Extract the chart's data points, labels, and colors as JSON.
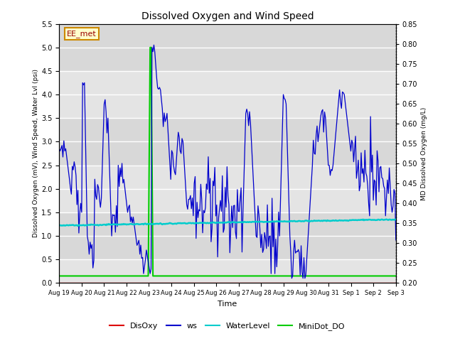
{
  "title": "Dissolved Oxygen and Wind Speed",
  "xlabel": "Time",
  "ylabel_left": "Dissolved Oxygen (mV), Wind Speed, Water Lvl (psi)",
  "ylabel_right": "MD Dissolved Oxygen (mg/L)",
  "ylim_left": [
    0.0,
    5.5
  ],
  "ylim_right": [
    0.2,
    0.85
  ],
  "yticks_left": [
    0.0,
    0.5,
    1.0,
    1.5,
    2.0,
    2.5,
    3.0,
    3.5,
    4.0,
    4.5,
    5.0,
    5.5
  ],
  "yticks_right": [
    0.2,
    0.25,
    0.3,
    0.35,
    0.4,
    0.45,
    0.5,
    0.55,
    0.6,
    0.65,
    0.7,
    0.75,
    0.8,
    0.85
  ],
  "x_tick_labels": [
    "Aug 19",
    "Aug 20",
    "Aug 21",
    "Aug 22",
    "Aug 23",
    "Aug 24",
    "Aug 25",
    "Aug 26",
    "Aug 27",
    "Aug 28",
    "Aug 29",
    "Aug 30",
    "Aug 31",
    "Sep 1",
    "Sep 2",
    "Sep 3"
  ],
  "annotation_text": "EE_met",
  "colors": {
    "DisOxy": "#dd0000",
    "ws": "#0000cc",
    "WaterLevel": "#00cccc",
    "MiniDot_DO": "#00cc00"
  },
  "bg_bands": [
    [
      4.5,
      5.5,
      "#d8d8d8"
    ],
    [
      3.5,
      4.5,
      "#e4e4e4"
    ],
    [
      2.5,
      3.5,
      "#d8d8d8"
    ],
    [
      1.5,
      2.5,
      "#e4e4e4"
    ],
    [
      0.5,
      1.5,
      "#d8d8d8"
    ],
    [
      0.0,
      0.5,
      "#e4e4e4"
    ]
  ],
  "annotation_box_color": "#ffffcc",
  "annotation_text_color": "#990000",
  "annotation_edge_color": "#cc8800"
}
